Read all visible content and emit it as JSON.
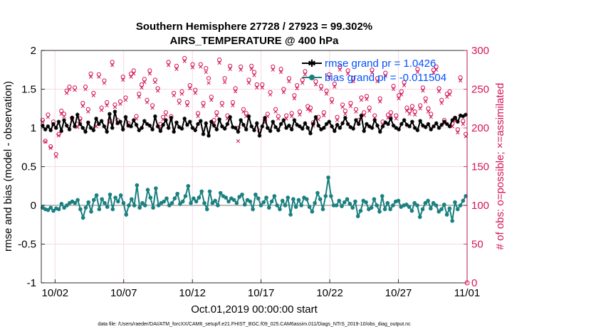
{
  "chart_data": {
    "type": "line",
    "title_line1": "Southern Hemisphere 27728 / 27923 = 99.302%",
    "title_line2": "AIRS_TEMPERATURE @ 400 hPa",
    "xlabel": "Oct.01,2019 00:00:00 start",
    "ylabel_left": "rmse and bias (model - observation)",
    "ylabel_right": "# of obs: o=possible; ×=assimilated",
    "footer": "data file: /Users/raeder/DAI/ATM_forcXX/CAM6_setup/f.e21.FHIST_BGC.f09_025.CAM6assim.011/Diags_NTrS_2019-10/obs_diag_output.nc",
    "x_ticks": [
      {
        "value": 2,
        "label": "10/02"
      },
      {
        "value": 7,
        "label": "10/07"
      },
      {
        "value": 12,
        "label": "10/12"
      },
      {
        "value": 17,
        "label": "10/17"
      },
      {
        "value": 22,
        "label": "10/22"
      },
      {
        "value": 27,
        "label": "10/27"
      },
      {
        "value": 32,
        "label": "11/01"
      }
    ],
    "xlim": [
      1,
      32
    ],
    "ylim_left": [
      -1,
      2
    ],
    "yticks_left": [
      "-1",
      "-0.5",
      "0",
      "0.5",
      "1",
      "1.5",
      "2"
    ],
    "ylim_right": [
      0,
      300
    ],
    "yticks_right": [
      "0",
      "50",
      "100",
      "150",
      "200",
      "250",
      "300"
    ],
    "legend_location": "top-right",
    "colors": {
      "rmse": "#000000",
      "bias": "#1a8080",
      "obs": "#d4145a",
      "zero_line": "#bbbbbb",
      "legend_text": "#0050ff",
      "grid": "#f3d9e2"
    },
    "series": [
      {
        "name": "rmse grand pr = 1.0426",
        "axis": "left",
        "marker": "star",
        "values": [
          1.03,
          0.98,
          1.02,
          0.97,
          1.05,
          1.0,
          1.08,
          0.96,
          1.1,
          1.03,
          0.98,
          1.13,
          1.02,
          1.17,
          1.05,
          1.0,
          0.95,
          1.07,
          1.0,
          0.97,
          1.12,
          1.05,
          1.09,
          1.02,
          0.95,
          1.18,
          1.0,
          1.21,
          1.06,
          1.08,
          0.98,
          1.14,
          1.03,
          1.02,
          1.1,
          1.04,
          0.97,
          1.0,
          1.09,
          1.05,
          1.03,
          0.98,
          1.15,
          1.02,
          0.96,
          1.04,
          1.1,
          1.0,
          1.13,
          0.95,
          1.07,
          1.01,
          0.99,
          1.12,
          1.04,
          1.08,
          1.0,
          0.97,
          1.05,
          1.09,
          0.92,
          1.06,
          0.9,
          1.08,
          1.03,
          0.98,
          1.11,
          1.02,
          0.99,
          1.05,
          1.14,
          1.01,
          1.0,
          0.95,
          1.1,
          1.04,
          0.98,
          1.15,
          1.02,
          0.97,
          1.06,
          0.9,
          1.02,
          1.13,
          1.0,
          0.96,
          1.08,
          1.01,
          0.97,
          1.05,
          1.1,
          1.0,
          1.03,
          0.98,
          1.1,
          1.04,
          1.02,
          0.99,
          1.06,
          1.0,
          0.93,
          1.05,
          1.14,
          1.03,
          0.98,
          1.0,
          1.05,
          1.08,
          1.02,
          0.96,
          1.04,
          1.0,
          1.06,
          1.13,
          1.05,
          1.01,
          0.99,
          1.1,
          1.05,
          1.16,
          0.96,
          1.05,
          1.02,
          1.0,
          1.1,
          1.03,
          0.95,
          1.02,
          1.07,
          1.05,
          1.12,
          1.03,
          1.0,
          0.98,
          1.05,
          1.1,
          1.04,
          1.02,
          1.08,
          1.0,
          0.97,
          1.09,
          1.03,
          1.01,
          1.05,
          0.98,
          1.02,
          1.06,
          1.0,
          1.04,
          1.08,
          1.05,
          1.02,
          1.1,
          1.13,
          1.08,
          1.16,
          1.15,
          1.17
        ]
      },
      {
        "name": "bias grand pr = -0.011504",
        "axis": "left",
        "marker": "dot",
        "values": [
          -0.03,
          -0.05,
          -0.06,
          -0.03,
          -0.07,
          -0.04,
          -0.05,
          0.02,
          -0.03,
          0.0,
          0.03,
          0.05,
          0.03,
          0.07,
          -0.05,
          -0.16,
          -0.03,
          0.04,
          -0.08,
          0.07,
          0.13,
          -0.05,
          0.08,
          0.03,
          -0.02,
          0.14,
          -0.05,
          0.1,
          0.05,
          0.13,
          0.03,
          -0.12,
          0.0,
          0.08,
          0.0,
          0.26,
          -0.03,
          0.03,
          0.0,
          0.2,
          0.1,
          -0.03,
          0.22,
          0.0,
          0.03,
          0.05,
          0.09,
          0.0,
          0.03,
          0.09,
          0.15,
          0.02,
          0.05,
          0.12,
          0.25,
          0.03,
          0.09,
          0.05,
          0.1,
          0.18,
          0.03,
          -0.05,
          0.18,
          0.03,
          0.06,
          0.0,
          0.16,
          0.12,
          0.1,
          0.05,
          0.09,
          0.07,
          0.03,
          0.11,
          0.14,
          0.01,
          0.07,
          0.05,
          -0.05,
          0.14,
          0.09,
          0.0,
          0.04,
          0.1,
          -0.03,
          0.05,
          0.12,
          0.0,
          -0.05,
          0.06,
          0.0,
          0.1,
          -0.12,
          0.08,
          -0.02,
          0.07,
          0.0,
          0.1,
          0.08,
          -0.02,
          -0.08,
          0.03,
          0.16,
          0.08,
          -0.05,
          0.12,
          0.36,
          0.12,
          0.0,
          0.0,
          0.06,
          -0.01,
          0.04,
          0.08,
          0.02,
          -0.03,
          0.05,
          -0.14,
          -0.07,
          0.06,
          0.04,
          -0.05,
          -0.03,
          0.08,
          0.0,
          -0.08,
          0.12,
          -0.05,
          0.03,
          -0.05,
          0.0,
          0.05,
          0.06,
          -0.02,
          0.0,
          0.01,
          -0.02,
          -0.07,
          0.03,
          0.0,
          -0.15,
          -0.05,
          0.03,
          0.06,
          -0.04,
          0.03,
          0.0,
          -0.08,
          -0.05,
          0.01,
          -0.12,
          -0.04,
          -0.2,
          0.04,
          -0.05,
          0.0,
          0.06,
          0.12
        ]
      },
      {
        "name": "possible",
        "axis": "right",
        "marker": "circle",
        "values": [
          210,
          183,
          217,
          176,
          208,
          166,
          192,
          222,
          218,
          248,
          253,
          213,
          252,
          205,
          212,
          232,
          253,
          224,
          270,
          245,
          205,
          269,
          226,
          261,
          233,
          210,
          285,
          230,
          210,
          234,
          266,
          239,
          206,
          270,
          274,
          215,
          244,
          256,
          263,
          236,
          274,
          229,
          262,
          251,
          205,
          214,
          220,
          285,
          215,
          245,
          280,
          235,
          247,
          290,
          233,
          255,
          282,
          249,
          219,
          282,
          232,
          277,
          264,
          240,
          210,
          220,
          288,
          232,
          264,
          216,
          280,
          233,
          251,
          200,
          279,
          224,
          219,
          262,
          280,
          272,
          256,
          196,
          256,
          210,
          218,
          246,
          279,
          224,
          215,
          276,
          250,
          216,
          264,
          219,
          242,
          255,
          221,
          262,
          273,
          228,
          226,
          207,
          260,
          214,
          254,
          220,
          248,
          269,
          237,
          257,
          214,
          279,
          230,
          222,
          274,
          232,
          264,
          224,
          210,
          239,
          220,
          241,
          226,
          275,
          216,
          264,
          238,
          208,
          271,
          217,
          220,
          254,
          216,
          242,
          247,
          259,
          226,
          222,
          228,
          221,
          276,
          229,
          252,
          238,
          225,
          218,
          275,
          279,
          251,
          236,
          210,
          244,
          247,
          206,
          213,
          198,
          265,
          209,
          192
        ]
      },
      {
        "name": "assimilated",
        "axis": "right",
        "marker": "x",
        "values": [
          208,
          182,
          214,
          174,
          205,
          163,
          190,
          218,
          215,
          245,
          250,
          209,
          249,
          201,
          210,
          228,
          250,
          221,
          266,
          242,
          202,
          266,
          223,
          258,
          229,
          207,
          281,
          227,
          206,
          231,
          262,
          236,
          203,
          266,
          270,
          212,
          240,
          252,
          259,
          233,
          270,
          226,
          259,
          248,
          200,
          211,
          217,
          281,
          212,
          242,
          276,
          232,
          244,
          286,
          229,
          251,
          278,
          245,
          215,
          279,
          228,
          272,
          258,
          236,
          206,
          216,
          284,
          229,
          259,
          212,
          276,
          229,
          247,
          183,
          275,
          221,
          215,
          258,
          276,
          268,
          252,
          192,
          252,
          207,
          215,
          243,
          275,
          221,
          212,
          272,
          246,
          212,
          260,
          215,
          238,
          251,
          217,
          258,
          269,
          224,
          222,
          203,
          256,
          211,
          250,
          216,
          244,
          265,
          233,
          253,
          210,
          275,
          227,
          218,
          270,
          228,
          260,
          221,
          207,
          236,
          216,
          237,
          222,
          271,
          213,
          260,
          234,
          204,
          267,
          213,
          216,
          250,
          212,
          238,
          243,
          255,
          222,
          218,
          224,
          217,
          272,
          225,
          248,
          234,
          221,
          214,
          271,
          275,
          247,
          232,
          206,
          240,
          243,
          202,
          209,
          194,
          261,
          205,
          189
        ]
      }
    ]
  }
}
